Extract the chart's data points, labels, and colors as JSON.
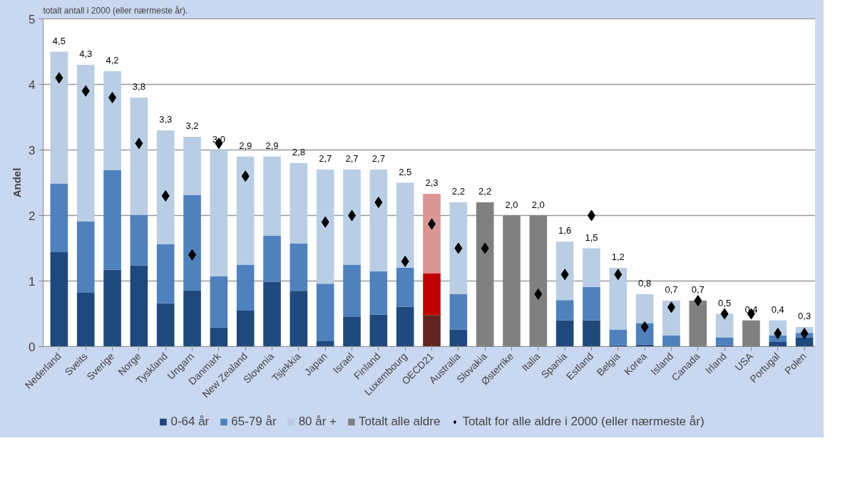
{
  "chart_data": {
    "type": "bar",
    "stacked": true,
    "ylabel": "Andel",
    "annotations": [
      "totalt antall i 2000 (eller nærmeste år)."
    ],
    "categories": [
      "Nederland",
      "Sveits",
      "Sverige",
      "Norge",
      "Tyskland",
      "Ungarn",
      "Danmark",
      "New Zealand",
      "Slovenia",
      "Tsjekkia",
      "Japan",
      "Israel",
      "Finland",
      "Luxembourg",
      "OECD21",
      "Australia",
      "Slovakia",
      "Østerrike",
      "Italia",
      "Spania",
      "Estland",
      "Belgia",
      "Korea",
      "Island",
      "Canada",
      "Irland",
      "USA",
      "Portugal",
      "Polen"
    ],
    "series": [
      {
        "name": "0-64 år",
        "colors": [
          "#1f497d",
          "#1f497d",
          "#1f497d",
          "#1f497d",
          "#1f497d",
          "#1f497d",
          "#1f497d",
          "#1f497d",
          "#1f497d",
          "#1f497d",
          "#1f497d",
          "#1f497d",
          "#1f497d",
          "#1f497d",
          "#632523",
          "#1f497d",
          "#1f497d",
          "#1f497d",
          "#1f497d",
          "#1f497d",
          "#1f497d",
          "#1f497d",
          "#1f497d",
          "#1f497d",
          "#1f497d",
          "#1f497d",
          "#1f497d",
          "#1f497d",
          "#1f497d"
        ],
        "values": [
          1.44,
          0.82,
          1.17,
          1.24,
          0.66,
          0.86,
          0.29,
          0.55,
          0.99,
          0.85,
          0.09,
          0.45,
          0.49,
          0.61,
          0.48,
          0.26,
          null,
          null,
          null,
          0.4,
          0.4,
          0.02,
          0.03,
          0,
          null,
          0.02,
          null,
          0.07,
          0.14
        ]
      },
      {
        "name": "65-79 år",
        "colors": [
          "#4f81bd",
          "#4f81bd",
          "#4f81bd",
          "#4f81bd",
          "#4f81bd",
          "#4f81bd",
          "#4f81bd",
          "#4f81bd",
          "#4f81bd",
          "#4f81bd",
          "#4f81bd",
          "#4f81bd",
          "#4f81bd",
          "#4f81bd",
          "#c00000",
          "#4f81bd",
          "#4f81bd",
          "#4f81bd",
          "#4f81bd",
          "#4f81bd",
          "#4f81bd",
          "#4f81bd",
          "#4f81bd",
          "#4f81bd",
          "#4f81bd",
          "#4f81bd",
          "#4f81bd",
          "#4f81bd",
          "#4f81bd"
        ],
        "values": [
          1.05,
          1.09,
          1.52,
          0.77,
          0.9,
          1.45,
          0.78,
          0.7,
          0.7,
          0.72,
          0.87,
          0.8,
          0.66,
          0.59,
          0.64,
          0.54,
          null,
          null,
          null,
          0.31,
          0.51,
          0.24,
          0.33,
          0.17,
          null,
          0.12,
          null,
          0.1,
          0.07
        ]
      },
      {
        "name": "80 år +",
        "colors": [
          "#b9cde5",
          "#b9cde5",
          "#b9cde5",
          "#b9cde5",
          "#b9cde5",
          "#b9cde5",
          "#b9cde5",
          "#b9cde5",
          "#b9cde5",
          "#b9cde5",
          "#b9cde5",
          "#b9cde5",
          "#b9cde5",
          "#b9cde5",
          "#d99694",
          "#b9cde5",
          "#b9cde5",
          "#b9cde5",
          "#b9cde5",
          "#b9cde5",
          "#b9cde5",
          "#b9cde5",
          "#b9cde5",
          "#b9cde5",
          "#b9cde5",
          "#b9cde5",
          "#b9cde5",
          "#b9cde5",
          "#b9cde5"
        ],
        "values": [
          2.01,
          2.39,
          1.51,
          1.79,
          1.74,
          0.89,
          1.93,
          1.65,
          1.21,
          1.23,
          1.74,
          1.45,
          1.55,
          1.3,
          1.21,
          1.4,
          null,
          null,
          null,
          0.89,
          0.59,
          0.94,
          0.44,
          0.53,
          null,
          0.36,
          null,
          0.23,
          0.09
        ]
      },
      {
        "name": "Totalt alle aldre",
        "color": "#808080",
        "values": [
          null,
          null,
          null,
          null,
          null,
          null,
          null,
          null,
          null,
          null,
          null,
          null,
          null,
          null,
          null,
          null,
          2.2,
          2.0,
          2.0,
          null,
          null,
          null,
          null,
          null,
          0.7,
          null,
          0.4,
          null,
          null
        ]
      },
      {
        "name": "Totalt for alle aldre i 2000 (eller nærmeste år)",
        "type": "scatter",
        "marker": "diamond",
        "color": "#000000",
        "values": [
          4.1,
          3.9,
          3.8,
          3.1,
          2.3,
          1.4,
          3.1,
          2.6,
          null,
          null,
          1.9,
          2.0,
          2.2,
          1.3,
          1.87,
          1.5,
          1.5,
          null,
          0.8,
          1.1,
          2.0,
          1.1,
          0.3,
          0.6,
          0.7,
          0.5,
          0.5,
          0.2,
          0.2
        ]
      }
    ],
    "totals": [
      "4,5",
      "4,3",
      "4,2",
      "3,8",
      "3,3",
      "3,2",
      "3,0",
      "2,9",
      "2,9",
      "2,8",
      "2,7",
      "2,7",
      "2,7",
      "2,5",
      "2,3",
      "2,2",
      "2,2",
      "2,0",
      "2,0",
      "1,6",
      "1,5",
      "1,2",
      "0,8",
      "0,7",
      "0,7",
      "0,5",
      "0,4",
      "0,4",
      "0,3"
    ],
    "ylim": [
      0,
      5
    ],
    "yticks": [
      0,
      1,
      2,
      3,
      4,
      5
    ],
    "grid": "y",
    "legend": "bottom"
  }
}
